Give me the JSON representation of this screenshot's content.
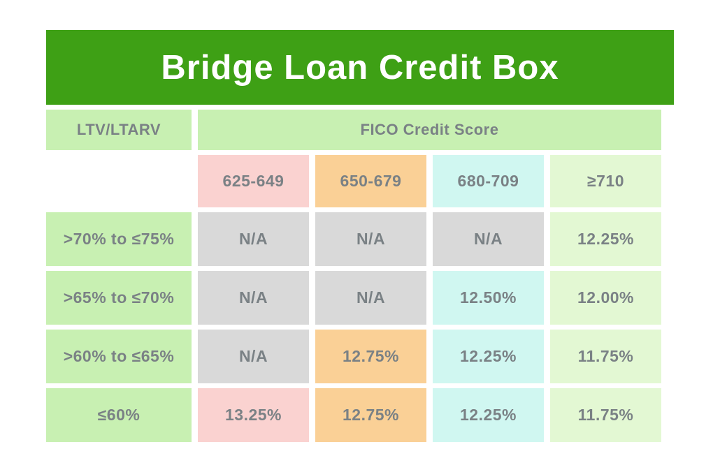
{
  "title": "Bridge Loan Credit Box",
  "colors": {
    "banner": "#3ea015",
    "cell_green": "#c8f0b2",
    "pale_green": "#e3f8d3",
    "pink": "#fad2d0",
    "orange": "#fad096",
    "cyan": "#d0f7f1",
    "gray": "#d9d9d9",
    "text": "#7a8185",
    "title_text": "#ffffff",
    "page_bg": "#ffffff"
  },
  "table": {
    "corner_label": "LTV/LTARV",
    "group_header": "FICO Credit Score",
    "columns": [
      {
        "label": "625-649"
      },
      {
        "label": "650-679"
      },
      {
        "label": "680-709"
      },
      {
        "label": "≥710"
      }
    ],
    "rows": [
      {
        "label": ">70% to ≤75%",
        "cells": [
          {
            "text": "N/A"
          },
          {
            "text": "N/A"
          },
          {
            "text": "N/A"
          },
          {
            "text": "12.25%"
          }
        ]
      },
      {
        "label": ">65% to ≤70%",
        "cells": [
          {
            "text": "N/A"
          },
          {
            "text": "N/A"
          },
          {
            "text": "12.50%"
          },
          {
            "text": "12.00%"
          }
        ]
      },
      {
        "label": ">60% to ≤65%",
        "cells": [
          {
            "text": "N/A"
          },
          {
            "text": "12.75%"
          },
          {
            "text": "12.25%"
          },
          {
            "text": "11.75%"
          }
        ]
      },
      {
        "label": "≤60%",
        "cells": [
          {
            "text": "13.25%"
          },
          {
            "text": "12.75%"
          },
          {
            "text": "12.25%"
          },
          {
            "text": "11.75%"
          }
        ]
      }
    ]
  },
  "chart_data": {
    "type": "table",
    "title": "Bridge Loan Credit Box",
    "row_axis_label": "LTV/LTARV",
    "column_axis_label": "FICO Credit Score",
    "columns": [
      "625-649",
      "650-679",
      "680-709",
      "≥710"
    ],
    "rows": [
      ">70% to ≤75%",
      ">65% to ≤70%",
      ">60% to ≤65%",
      "≤60%"
    ],
    "values": [
      [
        "N/A",
        "N/A",
        "N/A",
        "12.25%"
      ],
      [
        "N/A",
        "N/A",
        "12.50%",
        "12.00%"
      ],
      [
        "N/A",
        "12.75%",
        "12.25%",
        "11.75%"
      ],
      [
        "13.25%",
        "12.75%",
        "12.25%",
        "11.75%"
      ]
    ]
  }
}
